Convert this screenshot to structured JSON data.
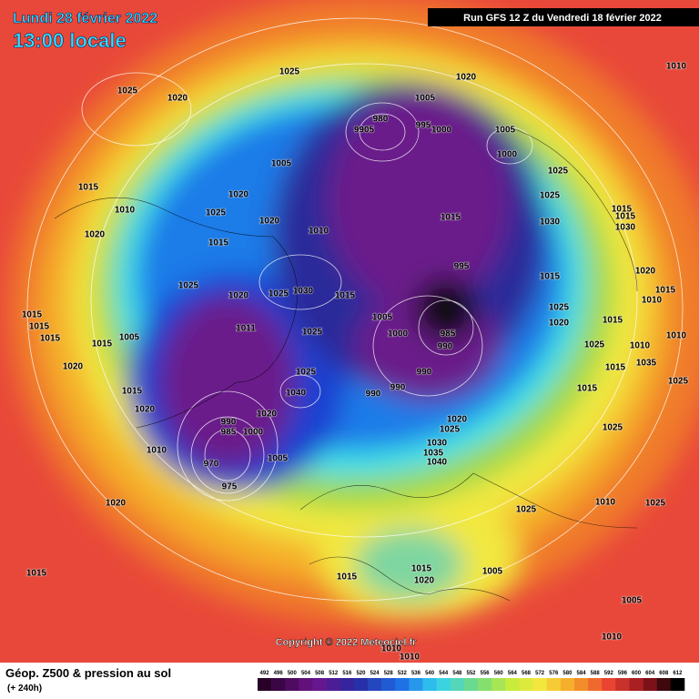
{
  "header": {
    "date": "Lundi 28 février 2022",
    "time": "13:00 locale",
    "run": "Run GFS 12 Z du Vendredi 18 février 2022"
  },
  "map": {
    "copyright": "Copyright © 2022 Meteociel.fr",
    "isobar_labels": [
      "1025",
      "1020",
      "1025",
      "1020",
      "1010",
      "1005",
      "980",
      "9905",
      "995",
      "1000",
      "1005",
      "1000",
      "1025",
      "1025",
      "1030",
      "1015",
      "1005",
      "1020",
      "1025",
      "1020",
      "1010",
      "1015",
      "1010",
      "1020",
      "1015",
      "1025",
      "1020",
      "1025",
      "1030",
      "1015",
      "995",
      "1015",
      "1025",
      "1020",
      "1015",
      "1015",
      "1015",
      "1015",
      "1005",
      "1015",
      "1011",
      "1025",
      "1005",
      "1000",
      "985",
      "990",
      "1025",
      "1020",
      "1015",
      "1025",
      "1040",
      "990",
      "990",
      "990",
      "1020",
      "1020",
      "990",
      "985",
      "1000",
      "975",
      "970",
      "1005",
      "1010",
      "1020",
      "1025",
      "1030",
      "1035",
      "1040",
      "1015",
      "1025",
      "1010",
      "1025",
      "1020",
      "1015",
      "1015",
      "1015",
      "1020",
      "1005",
      "1005",
      "1010",
      "1010",
      "1010",
      "1025",
      "1020",
      "1015",
      "1015",
      "1015",
      "1030",
      "1010",
      "1010",
      "1025",
      "1035",
      "1010",
      "1015"
    ]
  },
  "legend": {
    "title": "Géop. Z500 & pression au sol",
    "lead": "(+ 240h)",
    "scale_ticks": [
      492,
      496,
      500,
      504,
      508,
      512,
      516,
      520,
      524,
      528,
      532,
      536,
      540,
      544,
      548,
      552,
      556,
      560,
      564,
      568,
      572,
      576,
      580,
      584,
      588,
      592,
      596,
      600,
      604,
      608,
      612
    ]
  }
}
